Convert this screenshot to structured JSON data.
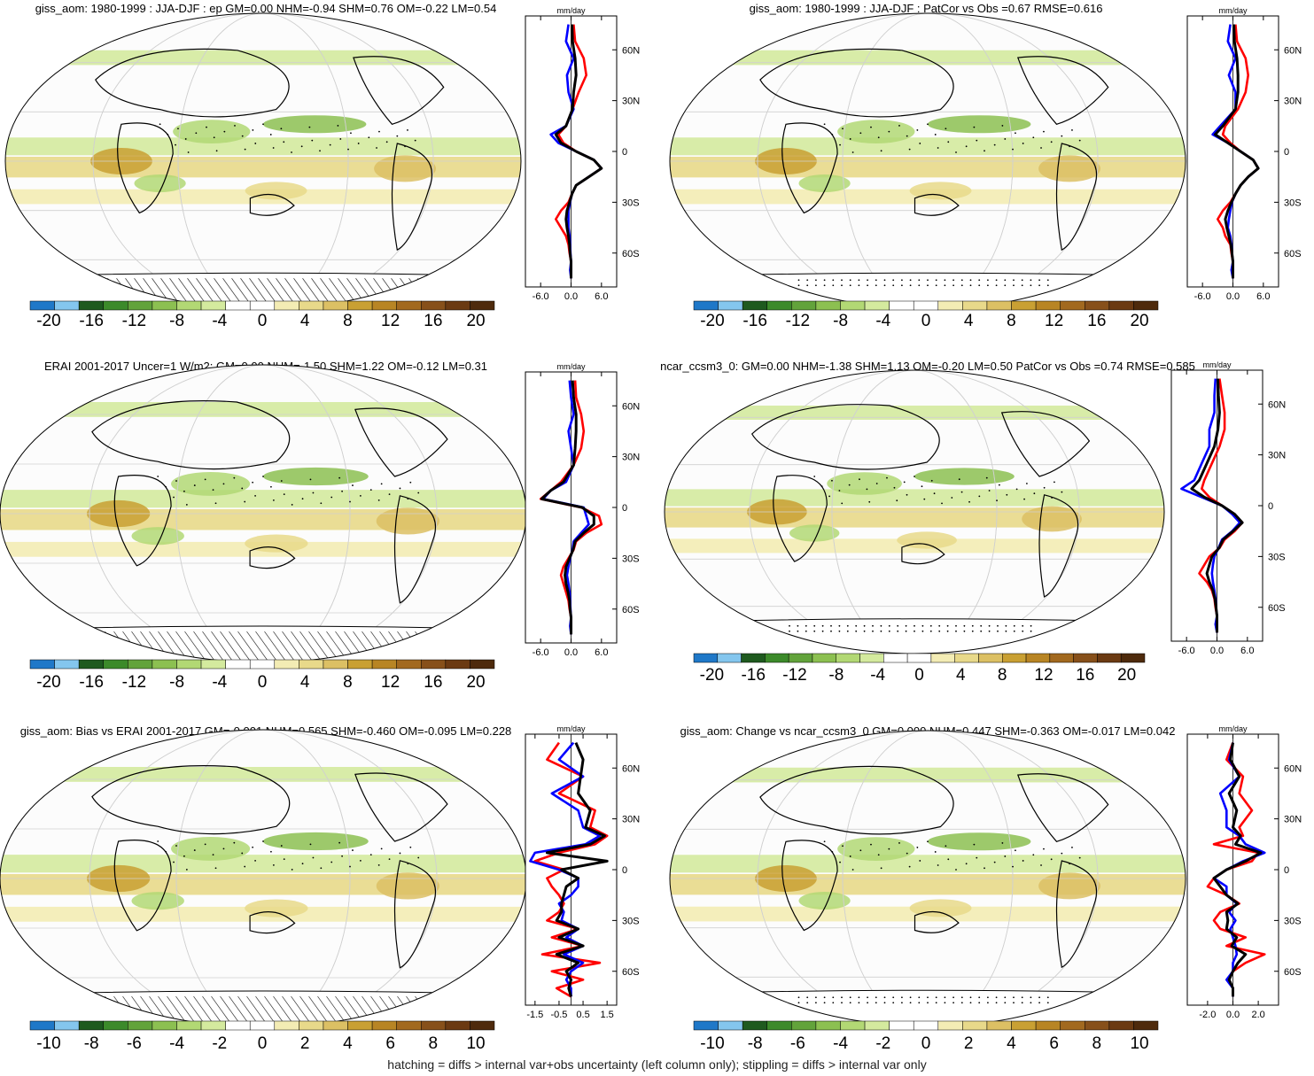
{
  "figure": {
    "footer": "hatching = diffs > internal var+obs uncertainty (left column only); stippling = diffs > internal var only"
  },
  "colormap": [
    "#1f78c8",
    "#84c6ee",
    "#1f5a1f",
    "#3c8a2a",
    "#62a33b",
    "#8cc051",
    "#b2d874",
    "#d4ea9e",
    "#ffffff",
    "#ffffff",
    "#f3ecb4",
    "#e8d98a",
    "#dcc064",
    "#c9a033",
    "#b88524",
    "#a2691f",
    "#87501a",
    "#6b3a12",
    "#4e2a0c"
  ],
  "panels": [
    {
      "id": "p1",
      "title": "giss_aom: 1980-1999 : JJA-DJF : ep GM=0.00 NHM=-0.94 SHM=0.76 OM=-0.22 LM=0.54",
      "colorbar_ticks": [
        "-20",
        "-16",
        "-12",
        "-8",
        "-4",
        "0",
        "4",
        "8",
        "12",
        "16",
        "20"
      ],
      "units": "mm/day",
      "xticks": [
        "-6.0",
        "0.0",
        "6.0"
      ],
      "xlim": [
        -9,
        9
      ],
      "yticks": [
        "60N",
        "30N",
        "0",
        "30S",
        "60S"
      ],
      "hatching": true
    },
    {
      "id": "p2",
      "title": "giss_aom: 1980-1999 : JJA-DJF : PatCor vs Obs =0.67 RMSE=0.616",
      "colorbar_ticks": [
        "-20",
        "-16",
        "-12",
        "-8",
        "-4",
        "0",
        "4",
        "8",
        "12",
        "16",
        "20"
      ],
      "units": "mm/day",
      "xticks": [
        "-6.0",
        "0.0",
        "6.0"
      ],
      "xlim": [
        -9,
        9
      ],
      "yticks": [
        "60N",
        "30N",
        "0",
        "30S",
        "60S"
      ],
      "hatching": false
    },
    {
      "id": "p3",
      "title": "ERAI 2001-2017 Uncer=1 W/m2: GM=0.00 NHM=-1.50 SHM=1.22 OM=-0.12 LM=0.31",
      "colorbar_ticks": [
        "-20",
        "-16",
        "-12",
        "-8",
        "-4",
        "0",
        "4",
        "8",
        "12",
        "16",
        "20"
      ],
      "units": "mm/day",
      "xticks": [
        "-6.0",
        "0.0",
        "6.0"
      ],
      "xlim": [
        -9,
        9
      ],
      "yticks": [
        "60N",
        "30N",
        "0",
        "30S",
        "60S"
      ],
      "hatching": true
    },
    {
      "id": "p4",
      "title": "ncar_ccsm3_0: GM=0.00 NHM=-1.38 SHM=1.13 OM=-0.20 LM=0.50 PatCor vs Obs =0.74 RMSE=0.585",
      "colorbar_ticks": [
        "-20",
        "-16",
        "-12",
        "-8",
        "-4",
        "0",
        "4",
        "8",
        "12",
        "16",
        "20"
      ],
      "units": "mm/day",
      "xticks": [
        "-6.0",
        "0.0",
        "6.0"
      ],
      "xlim": [
        -9,
        9
      ],
      "yticks": [
        "60N",
        "30N",
        "0",
        "30S",
        "60S"
      ],
      "hatching": false
    },
    {
      "id": "p5",
      "title": "giss_aom: Bias vs ERAI 2001-2017 GM=-0.001 NHM=0.565 SHM=-0.460 OM=-0.095 LM=0.228",
      "colorbar_ticks": [
        "-10",
        "-8",
        "-6",
        "-4",
        "-2",
        "0",
        "2",
        "4",
        "6",
        "8",
        "10"
      ],
      "units": "mm/day",
      "xticks": [
        "-1.5",
        "-0.5",
        "0.5",
        "1.5"
      ],
      "xlim": [
        -1.9,
        1.9
      ],
      "yticks": [
        "60N",
        "30N",
        "0",
        "30S",
        "60S"
      ],
      "hatching": true
    },
    {
      "id": "p6",
      "title": "giss_aom: Change vs ncar_ccsm3_0 GM=0.000 NHM=0.447 SHM=-0.363 OM=-0.017 LM=0.042",
      "colorbar_ticks": [
        "-10",
        "-8",
        "-6",
        "-4",
        "-2",
        "0",
        "2",
        "4",
        "6",
        "8",
        "10"
      ],
      "units": "mm/day",
      "xticks": [
        "-2.0",
        "0.0",
        "2.0"
      ],
      "xlim": [
        -3.6,
        3.6
      ],
      "yticks": [
        "60N",
        "30N",
        "0",
        "30S",
        "60S"
      ],
      "hatching": false
    }
  ],
  "chart_data": [
    {
      "type": "line",
      "title": "giss_aom: 1980-1999 : JJA-DJF : ep GM=0.00 NHM=-0.94 SHM=0.76 OM=-0.22 LM=0.54",
      "xlabel": "mm/day",
      "y": [
        75,
        65,
        55,
        45,
        35,
        25,
        15,
        10,
        5,
        0,
        -5,
        -10,
        -15,
        -20,
        -25,
        -30,
        -35,
        -40,
        -45,
        -50,
        -55,
        -60,
        -65,
        -70,
        -75
      ],
      "series": [
        {
          "color": "#ff0000",
          "values": [
            0.5,
            0.8,
            2.5,
            3.0,
            1.5,
            0.3,
            -1.0,
            -2.5,
            -1.5,
            1.0,
            4.5,
            6.0,
            3.5,
            1.0,
            0.2,
            -0.5,
            -2.0,
            -3.0,
            -2.0,
            -1.0,
            -0.5,
            -0.3,
            0,
            0,
            0
          ]
        },
        {
          "color": "#0000ff",
          "values": [
            -0.5,
            -1.0,
            0.5,
            -0.8,
            -0.5,
            0.5,
            -1.0,
            -4.0,
            -2.5,
            1.0,
            4.5,
            6.0,
            3.5,
            1.0,
            0.2,
            -0.2,
            -0.5,
            -0.5,
            -0.5,
            -0.3,
            -0.2,
            -0.1,
            0,
            -0.2,
            0
          ]
        },
        {
          "color": "#000000",
          "values": [
            0.2,
            0.3,
            0.8,
            1.0,
            0.5,
            0.3,
            -1.0,
            -3.0,
            -2.0,
            1.0,
            4.5,
            6.0,
            3.5,
            1.0,
            0.2,
            -0.3,
            -0.8,
            -1.0,
            -0.8,
            -0.5,
            -0.3,
            -0.2,
            0,
            0,
            0
          ]
        }
      ]
    },
    {
      "type": "line",
      "title": "giss_aom: 1980-1999 : JJA-DJF : PatCor vs Obs =0.67 RMSE=0.616",
      "xlabel": "mm/day",
      "y": [
        75,
        65,
        55,
        45,
        35,
        25,
        15,
        10,
        5,
        0,
        -5,
        -10,
        -15,
        -20,
        -25,
        -30,
        -35,
        -40,
        -45,
        -50,
        -55,
        -60,
        -65,
        -70,
        -75
      ],
      "series": [
        {
          "color": "#ff0000",
          "values": [
            0.5,
            0.8,
            2.5,
            3.0,
            2.5,
            1.0,
            -1.5,
            -2.0,
            -0.5,
            1.5,
            4.0,
            5.0,
            3.0,
            1.5,
            0.5,
            -0.5,
            -2.0,
            -3.0,
            -2.0,
            -1.5,
            -0.5,
            -0.3,
            0,
            0,
            0
          ]
        },
        {
          "color": "#0000ff",
          "values": [
            -0.5,
            -1.0,
            0.5,
            -0.8,
            0.5,
            0.5,
            -2.5,
            -4.0,
            -1.0,
            1.5,
            4.0,
            5.0,
            3.0,
            1.5,
            0.5,
            -0.2,
            -0.5,
            -0.8,
            -1.0,
            -0.5,
            -0.3,
            -0.2,
            0,
            -0.3,
            0
          ]
        },
        {
          "color": "#000000",
          "values": [
            0.2,
            0.3,
            0.8,
            1.0,
            1.0,
            0.5,
            -2.0,
            -3.5,
            -1.0,
            1.5,
            4.0,
            5.0,
            3.0,
            1.5,
            0.5,
            -0.3,
            -1.0,
            -1.5,
            -1.2,
            -0.8,
            -0.4,
            -0.2,
            0,
            0,
            0
          ]
        }
      ]
    },
    {
      "type": "line",
      "title": "ERAI 2001-2017 Uncer=1 W/m2: GM=0.00 NHM=-1.50 SHM=1.22 OM=-0.12 LM=0.31",
      "xlabel": "mm/day",
      "y": [
        75,
        65,
        55,
        45,
        35,
        25,
        15,
        10,
        5,
        0,
        -5,
        -10,
        -15,
        -20,
        -25,
        -30,
        -35,
        -40,
        -45,
        -50,
        -55,
        -60,
        -65,
        -70,
        -75
      ],
      "series": [
        {
          "color": "#ff0000",
          "values": [
            0.8,
            1.0,
            2.0,
            2.5,
            2.0,
            0.5,
            -2.0,
            -4.0,
            -6.0,
            2.0,
            5.5,
            6.0,
            3.0,
            1.0,
            0.5,
            -0.5,
            -1.5,
            -2.0,
            -1.5,
            -1.0,
            -0.5,
            -0.3,
            0,
            0,
            0
          ]
        },
        {
          "color": "#0000ff",
          "values": [
            -0.3,
            0,
            0.5,
            -0.5,
            0,
            0.5,
            -1.0,
            -4.0,
            -5.5,
            2.5,
            3.0,
            3.5,
            2.0,
            0.5,
            0.3,
            -0.2,
            -0.5,
            -0.8,
            -0.5,
            -0.3,
            -0.2,
            -0.1,
            0,
            -0.2,
            0
          ]
        },
        {
          "color": "#000000",
          "values": [
            0.3,
            0.5,
            1.0,
            1.0,
            0.8,
            0.5,
            -1.5,
            -4.0,
            -5.8,
            2.2,
            4.5,
            4.5,
            2.5,
            0.8,
            0.4,
            -0.3,
            -1.0,
            -1.2,
            -1.0,
            -0.6,
            -0.3,
            -0.2,
            0,
            0,
            0
          ]
        }
      ]
    },
    {
      "type": "line",
      "title": "ncar_ccsm3_0: GM=0.00 NHM=-1.38 SHM=1.13 OM=-0.20 LM=0.50 PatCor vs Obs =0.74 RMSE=0.585",
      "xlabel": "mm/day",
      "y": [
        75,
        65,
        55,
        45,
        35,
        25,
        15,
        10,
        5,
        0,
        -5,
        -10,
        -15,
        -20,
        -25,
        -30,
        -35,
        -40,
        -45,
        -50,
        -55,
        -60,
        -65,
        -70,
        -75
      ],
      "series": [
        {
          "color": "#ff0000",
          "values": [
            0.5,
            1.0,
            1.5,
            1.5,
            0.5,
            -1.0,
            -2.5,
            -3.0,
            -1.5,
            1.0,
            3.5,
            5.0,
            3.5,
            1.5,
            0.5,
            -1.5,
            -2.5,
            -3.5,
            -2.0,
            -1.0,
            -0.5,
            -0.3,
            0,
            0,
            0
          ]
        },
        {
          "color": "#0000ff",
          "values": [
            -0.3,
            -0.5,
            -0.5,
            -1.5,
            -1.5,
            -3.0,
            -4.5,
            -7.0,
            -3.0,
            1.0,
            3.0,
            4.5,
            3.0,
            1.0,
            0.3,
            -0.5,
            -0.8,
            -1.0,
            -0.8,
            -0.5,
            -0.3,
            -0.2,
            0,
            -0.3,
            0
          ]
        },
        {
          "color": "#000000",
          "values": [
            0.2,
            0.3,
            0.5,
            0.2,
            -0.5,
            -2.0,
            -3.5,
            -5.0,
            -2.5,
            1.0,
            3.5,
            5.0,
            3.2,
            1.2,
            0.4,
            -1.0,
            -1.5,
            -2.0,
            -1.5,
            -0.8,
            -0.4,
            -0.2,
            0,
            0,
            0
          ]
        }
      ]
    },
    {
      "type": "line",
      "title": "giss_aom: Bias vs ERAI 2001-2017 GM=-0.001 NHM=0.565 SHM=-0.460 OM=-0.095 LM=0.228",
      "xlabel": "mm/day",
      "y": [
        75,
        65,
        55,
        45,
        35,
        25,
        20,
        15,
        10,
        5,
        0,
        -5,
        -10,
        -15,
        -20,
        -25,
        -30,
        -35,
        -40,
        -45,
        -50,
        -55,
        -60,
        -65,
        -70,
        -75
      ],
      "series": [
        {
          "color": "#ff0000",
          "values": [
            -0.5,
            -1.0,
            0.5,
            -0.5,
            1.0,
            0.8,
            1.5,
            1.0,
            -0.5,
            -1.5,
            -0.3,
            -1.0,
            -0.8,
            -0.5,
            -0.3,
            -0.5,
            -1.0,
            0.3,
            -0.8,
            0.5,
            -1.2,
            1.2,
            -0.8,
            0.5,
            -0.6,
            0
          ]
        },
        {
          "color": "#0000ff",
          "values": [
            0.1,
            -0.5,
            0.5,
            -0.8,
            0.3,
            0.5,
            1.2,
            0.6,
            -1.5,
            -1.7,
            -0.5,
            0.3,
            0.3,
            0,
            -0.5,
            -0.3,
            -0.4,
            0.3,
            -0.2,
            0.5,
            -0.3,
            0.5,
            0,
            -0.2,
            0,
            0
          ]
        },
        {
          "color": "#000000",
          "values": [
            0.2,
            0.5,
            0.4,
            0.3,
            0.8,
            0.6,
            1.4,
            0.8,
            -1.0,
            1.5,
            -0.4,
            0.3,
            -0.2,
            -0.3,
            -0.4,
            -0.4,
            -0.6,
            0.3,
            -0.5,
            0.5,
            -0.6,
            0.3,
            -0.2,
            0,
            -0.1,
            0
          ]
        }
      ]
    },
    {
      "type": "line",
      "title": "giss_aom: Change vs ncar_ccsm3_0 GM=0.000 NHM=0.447 SHM=-0.363 OM=-0.017 LM=0.042",
      "xlabel": "mm/day",
      "y": [
        75,
        65,
        55,
        45,
        35,
        25,
        20,
        15,
        10,
        5,
        0,
        -5,
        -10,
        -15,
        -20,
        -25,
        -30,
        -35,
        -40,
        -45,
        -50,
        -55,
        -60,
        -65,
        -70,
        -75
      ],
      "series": [
        {
          "color": "#ff0000",
          "values": [
            0,
            -0.5,
            0.8,
            0.5,
            1.5,
            0.5,
            0.8,
            -1.5,
            2.0,
            1.5,
            -0.5,
            -1.5,
            -2.0,
            -0.5,
            0.5,
            -1.0,
            -1.5,
            -1.0,
            1.0,
            -0.5,
            2.5,
            1.0,
            0,
            -0.3,
            0,
            0
          ]
        },
        {
          "color": "#0000ff",
          "values": [
            0,
            -0.3,
            0.5,
            -1.0,
            -0.5,
            -0.5,
            0.5,
            1.0,
            2.5,
            0.8,
            -0.5,
            -1.5,
            -0.5,
            -0.5,
            0.3,
            -0.3,
            0.2,
            -0.2,
            0,
            0.2,
            0.3,
            0,
            0,
            -0.5,
            0,
            0
          ]
        },
        {
          "color": "#000000",
          "values": [
            0,
            -0.2,
            0.5,
            -0.3,
            0.3,
            0,
            0.6,
            0.2,
            2.2,
            1.0,
            -0.5,
            -1.5,
            -1.0,
            -0.5,
            0.4,
            -0.5,
            -0.4,
            -0.5,
            0.3,
            -0.1,
            1.0,
            0.4,
            0,
            -0.3,
            0,
            0
          ]
        }
      ]
    }
  ]
}
